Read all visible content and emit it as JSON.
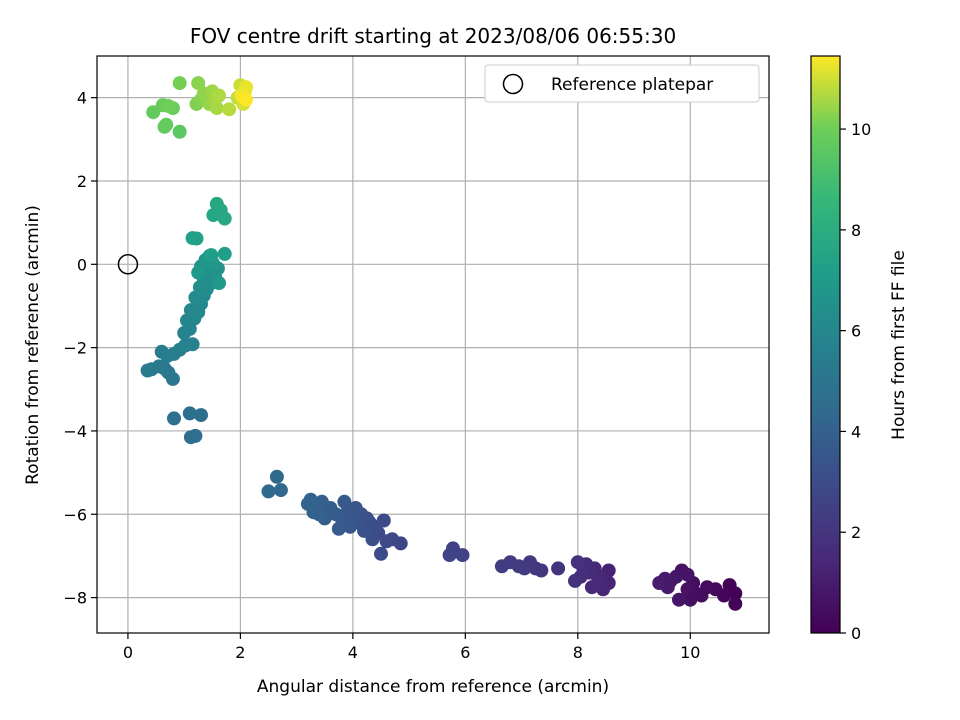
{
  "chart_data": {
    "type": "scatter",
    "title": "FOV centre drift starting at 2023/08/06 06:55:30",
    "xlabel": "Angular distance from reference (arcmin)",
    "ylabel": "Rotation from reference (arcmin)",
    "xlim": [
      -0.55,
      11.4
    ],
    "ylim": [
      -8.85,
      5.0
    ],
    "xticks": [
      0,
      2,
      4,
      6,
      8,
      10
    ],
    "yticks": [
      -8,
      -6,
      -4,
      -2,
      0,
      2,
      4
    ],
    "grid": true,
    "legend": {
      "placement": "top-right",
      "entries": [
        "Reference platepar"
      ]
    },
    "reference_point": {
      "x": 0,
      "y": 0
    },
    "colorbar": {
      "label": "Hours from first FF file",
      "colormap": "viridis",
      "range": [
        0,
        11.45
      ],
      "ticks": [
        0,
        2,
        4,
        6,
        8,
        10
      ]
    },
    "points": [
      [
        10.8,
        -7.9,
        0.05
      ],
      [
        10.7,
        -7.7,
        0.1
      ],
      [
        10.8,
        -8.15,
        0.15
      ],
      [
        10.6,
        -7.95,
        0.2
      ],
      [
        10.45,
        -7.8,
        0.3
      ],
      [
        10.3,
        -7.75,
        0.35
      ],
      [
        10.2,
        -7.95,
        0.4
      ],
      [
        10.1,
        -7.9,
        0.45
      ],
      [
        10.05,
        -7.65,
        0.5
      ],
      [
        10.0,
        -8.05,
        0.55
      ],
      [
        9.95,
        -7.8,
        0.6
      ],
      [
        9.85,
        -7.35,
        0.65
      ],
      [
        9.95,
        -7.45,
        0.7
      ],
      [
        9.8,
        -8.05,
        0.75
      ],
      [
        9.75,
        -7.5,
        0.8
      ],
      [
        9.65,
        -7.6,
        0.85
      ],
      [
        9.6,
        -7.75,
        0.9
      ],
      [
        9.55,
        -7.55,
        0.95
      ],
      [
        9.45,
        -7.65,
        1.0
      ],
      [
        8.55,
        -7.35,
        1.2
      ],
      [
        8.5,
        -7.55,
        1.25
      ],
      [
        8.55,
        -7.65,
        1.3
      ],
      [
        8.45,
        -7.8,
        1.35
      ],
      [
        8.4,
        -7.5,
        1.4
      ],
      [
        8.35,
        -7.65,
        1.45
      ],
      [
        8.3,
        -7.3,
        1.5
      ],
      [
        8.25,
        -7.75,
        1.55
      ],
      [
        8.2,
        -7.4,
        1.6
      ],
      [
        8.15,
        -7.2,
        1.65
      ],
      [
        8.1,
        -7.3,
        1.7
      ],
      [
        8.05,
        -7.5,
        1.75
      ],
      [
        8.0,
        -7.15,
        1.8
      ],
      [
        7.95,
        -7.6,
        1.85
      ],
      [
        7.65,
        -7.3,
        1.95
      ],
      [
        7.35,
        -7.35,
        2.05
      ],
      [
        7.25,
        -7.3,
        2.1
      ],
      [
        7.15,
        -7.15,
        2.15
      ],
      [
        7.05,
        -7.3,
        2.2
      ],
      [
        6.95,
        -7.25,
        2.25
      ],
      [
        6.8,
        -7.15,
        2.3
      ],
      [
        6.65,
        -7.25,
        2.35
      ],
      [
        5.95,
        -6.98,
        2.5
      ],
      [
        5.78,
        -6.82,
        2.55
      ],
      [
        5.72,
        -6.98,
        2.6
      ],
      [
        4.85,
        -6.7,
        2.75
      ],
      [
        4.7,
        -6.6,
        2.8
      ],
      [
        4.6,
        -6.65,
        2.85
      ],
      [
        4.55,
        -6.15,
        2.9
      ],
      [
        4.5,
        -6.95,
        2.95
      ],
      [
        4.45,
        -6.45,
        3.0
      ],
      [
        4.4,
        -6.3,
        3.05
      ],
      [
        4.35,
        -6.6,
        3.1
      ],
      [
        4.3,
        -6.2,
        3.15
      ],
      [
        4.25,
        -6.1,
        3.2
      ],
      [
        4.2,
        -6.4,
        3.25
      ],
      [
        4.15,
        -6.0,
        3.3
      ],
      [
        4.1,
        -6.2,
        3.35
      ],
      [
        4.05,
        -5.85,
        3.4
      ],
      [
        4.0,
        -6.1,
        3.45
      ],
      [
        3.95,
        -6.3,
        3.5
      ],
      [
        3.9,
        -5.95,
        3.55
      ],
      [
        3.85,
        -5.7,
        3.6
      ],
      [
        3.8,
        -6.1,
        3.65
      ],
      [
        3.75,
        -6.35,
        3.7
      ],
      [
        3.7,
        -6.0,
        3.75
      ],
      [
        3.6,
        -5.85,
        3.8
      ],
      [
        3.5,
        -6.1,
        3.85
      ],
      [
        3.45,
        -5.7,
        3.9
      ],
      [
        3.4,
        -6.0,
        3.95
      ],
      [
        3.35,
        -5.8,
        4.0
      ],
      [
        3.3,
        -5.95,
        4.05
      ],
      [
        3.25,
        -5.65,
        4.1
      ],
      [
        3.2,
        -5.75,
        4.15
      ],
      [
        2.72,
        -5.42,
        4.3
      ],
      [
        2.65,
        -5.1,
        4.35
      ],
      [
        2.5,
        -5.45,
        4.4
      ],
      [
        1.12,
        -4.15,
        4.6
      ],
      [
        1.2,
        -4.12,
        4.65
      ],
      [
        1.3,
        -3.62,
        4.7
      ],
      [
        1.1,
        -3.58,
        4.75
      ],
      [
        0.82,
        -3.7,
        4.8
      ],
      [
        0.8,
        -2.75,
        5.1
      ],
      [
        0.72,
        -2.6,
        5.15
      ],
      [
        0.65,
        -2.5,
        5.2
      ],
      [
        0.55,
        -2.45,
        5.25
      ],
      [
        0.42,
        -2.52,
        5.3
      ],
      [
        0.35,
        -2.55,
        5.35
      ],
      [
        0.6,
        -2.1,
        5.4
      ],
      [
        0.7,
        -2.2,
        5.45
      ],
      [
        0.82,
        -2.15,
        5.5
      ],
      [
        0.92,
        -2.05,
        5.55
      ],
      [
        1.15,
        -1.92,
        5.65
      ],
      [
        1.02,
        -1.95,
        5.7
      ],
      [
        1.0,
        -1.65,
        5.8
      ],
      [
        1.1,
        -1.55,
        5.85
      ],
      [
        1.05,
        -1.35,
        5.9
      ],
      [
        1.18,
        -1.3,
        5.95
      ],
      [
        1.12,
        -1.1,
        6.0
      ],
      [
        1.25,
        -1.15,
        6.05
      ],
      [
        1.3,
        -0.95,
        6.1
      ],
      [
        1.2,
        -0.8,
        6.15
      ],
      [
        1.35,
        -0.75,
        6.2
      ],
      [
        1.4,
        -0.6,
        6.25
      ],
      [
        1.28,
        -0.55,
        6.3
      ],
      [
        1.48,
        -0.45,
        6.35
      ],
      [
        1.35,
        -0.35,
        6.4
      ],
      [
        1.55,
        -0.3,
        6.45
      ],
      [
        1.42,
        -0.15,
        6.5
      ],
      [
        1.6,
        -0.1,
        6.55
      ],
      [
        1.5,
        0.05,
        6.6
      ],
      [
        1.38,
        0.1,
        6.65
      ],
      [
        1.3,
        -0.05,
        6.7
      ],
      [
        1.45,
        0.2,
        6.75
      ],
      [
        1.52,
        0.0,
        6.8
      ],
      [
        1.25,
        -0.2,
        6.85
      ],
      [
        1.62,
        -0.45,
        6.9
      ],
      [
        1.72,
        0.25,
        7.15
      ],
      [
        1.48,
        0.22,
        7.2
      ],
      [
        1.22,
        0.62,
        7.3
      ],
      [
        1.15,
        0.63,
        7.35
      ],
      [
        1.52,
        1.18,
        7.6
      ],
      [
        1.65,
        1.3,
        7.65
      ],
      [
        1.72,
        1.1,
        7.7
      ],
      [
        1.58,
        1.45,
        7.75
      ],
      [
        0.92,
        3.18,
        9.6
      ],
      [
        0.65,
        3.3,
        9.7
      ],
      [
        0.68,
        3.35,
        9.75
      ],
      [
        0.45,
        3.65,
        9.8
      ],
      [
        0.62,
        3.82,
        9.85
      ],
      [
        0.8,
        3.75,
        9.9
      ],
      [
        0.72,
        3.8,
        10.0
      ],
      [
        0.92,
        4.35,
        10.1
      ],
      [
        1.22,
        3.85,
        10.2
      ],
      [
        1.3,
        3.95,
        10.25
      ],
      [
        1.25,
        4.35,
        10.3
      ],
      [
        1.35,
        4.1,
        10.35
      ],
      [
        1.45,
        3.85,
        10.4
      ],
      [
        1.5,
        4.15,
        10.5
      ],
      [
        1.55,
        3.95,
        10.55
      ],
      [
        1.58,
        3.75,
        10.6
      ],
      [
        1.62,
        4.05,
        10.65
      ],
      [
        1.8,
        3.72,
        10.75
      ],
      [
        1.95,
        4.0,
        10.85
      ],
      [
        2.0,
        4.3,
        10.95
      ],
      [
        2.05,
        3.85,
        11.05
      ],
      [
        2.08,
        4.15,
        11.15
      ],
      [
        2.1,
        4.25,
        11.25
      ],
      [
        2.02,
        4.05,
        11.35
      ],
      [
        2.1,
        3.95,
        11.45
      ]
    ]
  }
}
